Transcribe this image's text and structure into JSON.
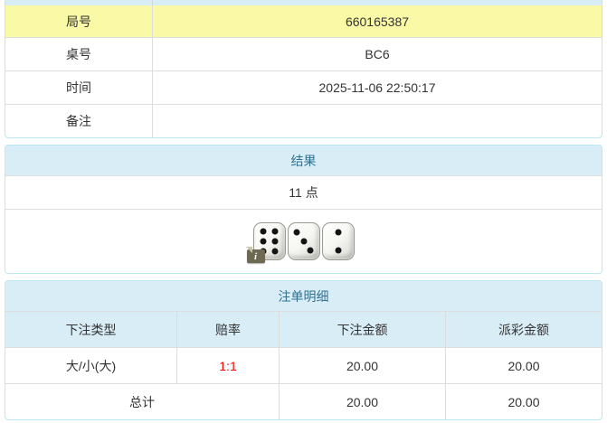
{
  "colors": {
    "panel_border": "#bce8f1",
    "heading_bg": "#d9edf7",
    "heading_text": "#31708f",
    "highlight_row_bg": "#f9f9a6",
    "odds_text": "#ff0000",
    "body_text": "#333333",
    "row_border": "#dddddd"
  },
  "info_table": {
    "rows": [
      {
        "label": "局号",
        "value": "660165387"
      },
      {
        "label": "桌号",
        "value": "BC6"
      },
      {
        "label": "时间",
        "value": "2025-11-06 22:50:17"
      },
      {
        "label": "备注",
        "value": ""
      }
    ]
  },
  "result_panel": {
    "title": "结果",
    "points": "11 点",
    "dice": [
      6,
      3,
      2
    ],
    "info_icon": "i"
  },
  "bets_panel": {
    "title": "注单明细",
    "columns": [
      "下注类型",
      "赔率",
      "下注金额",
      "派彩金额"
    ],
    "rows": [
      {
        "bet_type": "大/小(大)",
        "odds": "1:1",
        "bet_amount": "20.00",
        "payout": "20.00"
      }
    ],
    "total": {
      "label": "总计",
      "bet_amount": "20.00",
      "payout": "20.00"
    }
  }
}
